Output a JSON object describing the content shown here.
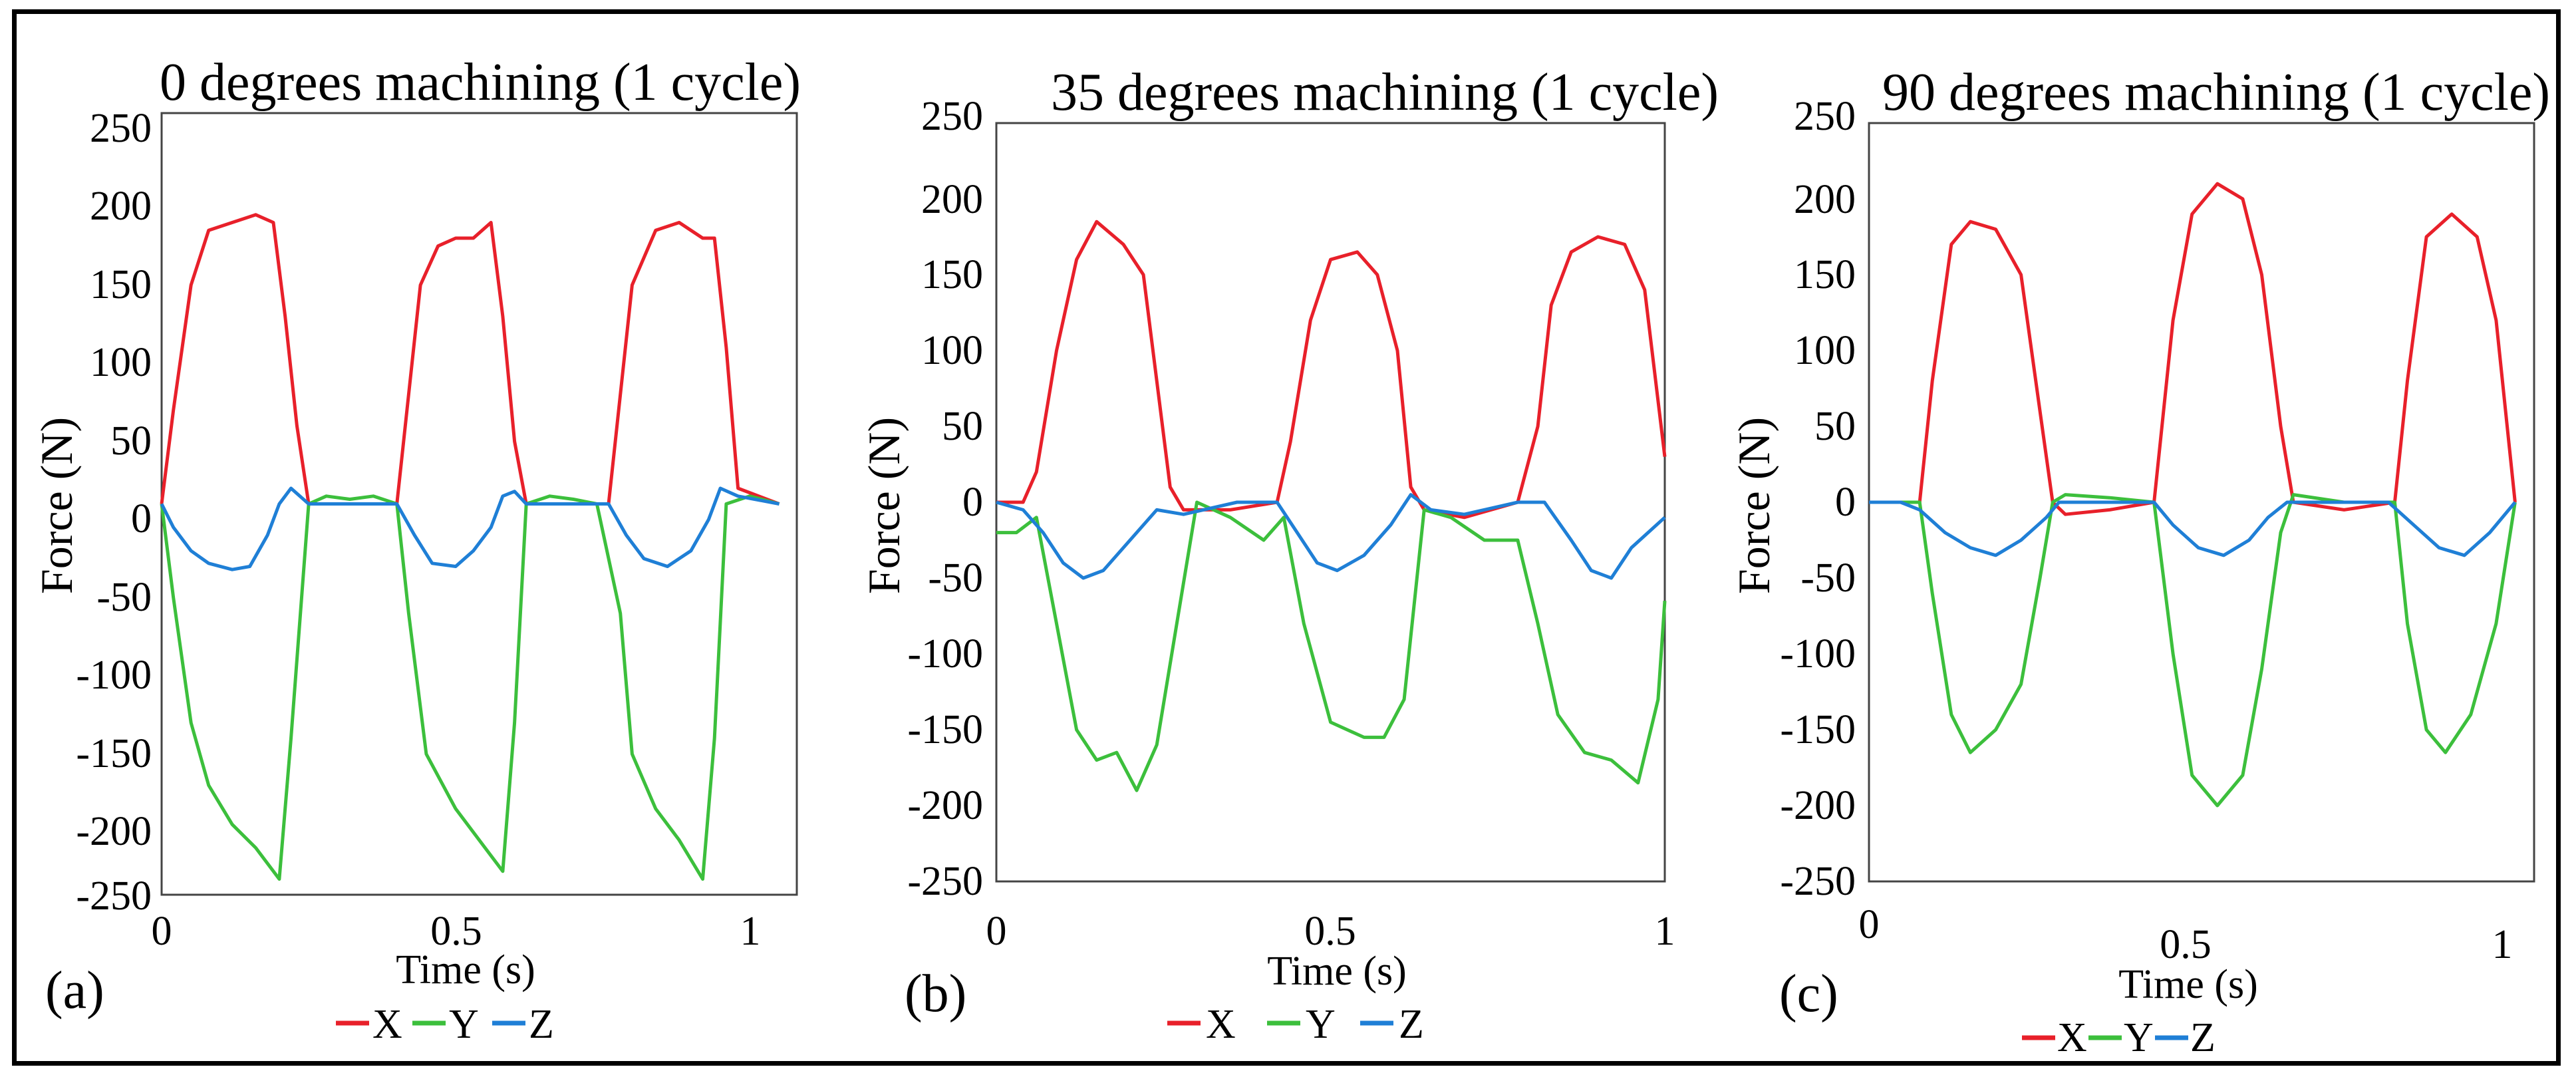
{
  "figure": {
    "frame_color": "#000000",
    "background": "#ffffff"
  },
  "chart_data": [
    {
      "type": "line",
      "panel_label": "(a)",
      "title": "0 degrees machining (1 cycle)",
      "xlabel": "Time (s)",
      "ylabel": "Force (N)",
      "xlim": [
        0,
        1.08
      ],
      "ylim": [
        -250,
        250
      ],
      "xticks": [
        0,
        0.5,
        1
      ],
      "xtick_labels": [
        "0",
        "0.5",
        "1"
      ],
      "yticks": [
        250,
        200,
        150,
        100,
        50,
        0,
        -50,
        -100,
        -150,
        -200,
        -250
      ],
      "ytick_labels": [
        "250",
        "200",
        "150",
        "100",
        "50",
        "0",
        "-50",
        "-100",
        "-150",
        "-200",
        "-250"
      ],
      "legend": [
        "X",
        "Y",
        "Z"
      ],
      "series": [
        {
          "name": "X",
          "color": "#e8202a",
          "x": [
            0,
            0.02,
            0.05,
            0.08,
            0.12,
            0.16,
            0.19,
            0.21,
            0.23,
            0.25,
            0.3,
            0.35,
            0.4,
            0.42,
            0.44,
            0.47,
            0.5,
            0.53,
            0.56,
            0.58,
            0.6,
            0.62,
            0.7,
            0.76,
            0.78,
            0.8,
            0.84,
            0.88,
            0.92,
            0.94,
            0.96,
            0.98,
            1.05
          ],
          "values": [
            0,
            60,
            140,
            175,
            180,
            185,
            180,
            120,
            50,
            0,
            0,
            0,
            0,
            70,
            140,
            165,
            170,
            170,
            180,
            120,
            40,
            0,
            0,
            0,
            70,
            140,
            175,
            180,
            170,
            170,
            100,
            10,
            0
          ]
        },
        {
          "name": "Y",
          "color": "#3cbf3c",
          "x": [
            0,
            0.02,
            0.05,
            0.08,
            0.12,
            0.16,
            0.2,
            0.22,
            0.25,
            0.28,
            0.32,
            0.36,
            0.4,
            0.42,
            0.45,
            0.5,
            0.55,
            0.58,
            0.6,
            0.62,
            0.66,
            0.7,
            0.74,
            0.78,
            0.8,
            0.84,
            0.88,
            0.92,
            0.94,
            0.96,
            1.0,
            1.05
          ],
          "values": [
            0,
            -60,
            -140,
            -180,
            -205,
            -220,
            -240,
            -150,
            0,
            5,
            3,
            5,
            0,
            -70,
            -160,
            -195,
            -220,
            -235,
            -140,
            0,
            5,
            3,
            0,
            -70,
            -160,
            -195,
            -215,
            -240,
            -150,
            0,
            5,
            0
          ]
        },
        {
          "name": "Z",
          "color": "#1f7fd6",
          "x": [
            0,
            0.02,
            0.05,
            0.08,
            0.12,
            0.15,
            0.18,
            0.2,
            0.22,
            0.25,
            0.3,
            0.35,
            0.4,
            0.43,
            0.46,
            0.5,
            0.53,
            0.56,
            0.58,
            0.6,
            0.62,
            0.7,
            0.76,
            0.79,
            0.82,
            0.86,
            0.9,
            0.93,
            0.95,
            0.98,
            1.05
          ],
          "values": [
            0,
            -15,
            -30,
            -38,
            -42,
            -40,
            -20,
            0,
            10,
            0,
            0,
            0,
            0,
            -20,
            -38,
            -40,
            -30,
            -15,
            5,
            8,
            0,
            0,
            0,
            -20,
            -35,
            -40,
            -30,
            -10,
            10,
            5,
            0
          ]
        }
      ]
    },
    {
      "type": "line",
      "panel_label": "(b)",
      "title": "35 degrees machining (1 cycle)",
      "xlabel": "Time (s)",
      "ylabel": "Force (N)",
      "xlim": [
        0,
        1.0
      ],
      "ylim": [
        -250,
        250
      ],
      "xticks": [
        0,
        0.5,
        1
      ],
      "xtick_labels": [
        "0",
        "0.5",
        "1"
      ],
      "yticks": [
        250,
        200,
        150,
        100,
        50,
        0,
        -50,
        -100,
        -150,
        -200,
        -250
      ],
      "ytick_labels": [
        "250",
        "200",
        "150",
        "100",
        "50",
        "0",
        "-50",
        "-100",
        "-150",
        "-200",
        "-250"
      ],
      "legend": [
        "X",
        "Y",
        "Z"
      ],
      "series": [
        {
          "name": "X",
          "color": "#e8202a",
          "x": [
            0,
            0.04,
            0.06,
            0.09,
            0.12,
            0.15,
            0.19,
            0.22,
            0.24,
            0.26,
            0.28,
            0.35,
            0.42,
            0.44,
            0.47,
            0.5,
            0.54,
            0.57,
            0.6,
            0.62,
            0.64,
            0.7,
            0.78,
            0.81,
            0.83,
            0.86,
            0.9,
            0.94,
            0.97,
            1.0
          ],
          "values": [
            0,
            0,
            20,
            100,
            160,
            185,
            170,
            150,
            80,
            10,
            -5,
            -5,
            0,
            40,
            120,
            160,
            165,
            150,
            100,
            10,
            -5,
            -10,
            0,
            50,
            130,
            165,
            175,
            170,
            140,
            30
          ]
        },
        {
          "name": "Y",
          "color": "#3cbf3c",
          "x": [
            0,
            0.03,
            0.06,
            0.09,
            0.12,
            0.15,
            0.18,
            0.21,
            0.24,
            0.27,
            0.3,
            0.35,
            0.4,
            0.43,
            0.46,
            0.5,
            0.55,
            0.58,
            0.61,
            0.64,
            0.68,
            0.73,
            0.78,
            0.81,
            0.84,
            0.88,
            0.92,
            0.96,
            0.99,
            1.0
          ],
          "values": [
            -20,
            -20,
            -10,
            -80,
            -150,
            -170,
            -165,
            -190,
            -160,
            -80,
            0,
            -10,
            -25,
            -10,
            -80,
            -145,
            -155,
            -155,
            -130,
            -5,
            -10,
            -25,
            -25,
            -80,
            -140,
            -165,
            -170,
            -185,
            -130,
            -65
          ]
        },
        {
          "name": "Z",
          "color": "#1f7fd6",
          "x": [
            0,
            0.04,
            0.07,
            0.1,
            0.13,
            0.16,
            0.2,
            0.24,
            0.28,
            0.31,
            0.36,
            0.42,
            0.45,
            0.48,
            0.51,
            0.55,
            0.59,
            0.62,
            0.65,
            0.7,
            0.78,
            0.82,
            0.86,
            0.89,
            0.92,
            0.95,
            1.0
          ],
          "values": [
            0,
            -5,
            -20,
            -40,
            -50,
            -45,
            -25,
            -5,
            -8,
            -5,
            0,
            0,
            -20,
            -40,
            -45,
            -35,
            -15,
            5,
            -5,
            -8,
            0,
            0,
            -25,
            -45,
            -50,
            -30,
            -10
          ]
        }
      ]
    },
    {
      "type": "line",
      "panel_label": "(c)",
      "title": "90 degrees machining (1 cycle)",
      "xlabel": "Time (s)",
      "ylabel": "Force (N)",
      "xlim": [
        0,
        1.05
      ],
      "ylim": [
        -250,
        250
      ],
      "xticks": [
        0,
        0.5,
        1
      ],
      "xtick_labels": [
        "0",
        "0.5",
        "1"
      ],
      "yticks": [
        250,
        200,
        150,
        100,
        50,
        0,
        -50,
        -100,
        -150,
        -200,
        -250
      ],
      "ytick_labels": [
        "250",
        "200",
        "150",
        "100",
        "50",
        "0",
        "-50",
        "-100",
        "-150",
        "-200",
        "-250"
      ],
      "legend": [
        "X",
        "Y",
        "Z"
      ],
      "series": [
        {
          "name": "X",
          "color": "#e8202a",
          "x": [
            0,
            0.08,
            0.1,
            0.13,
            0.16,
            0.2,
            0.24,
            0.27,
            0.29,
            0.31,
            0.38,
            0.45,
            0.48,
            0.51,
            0.55,
            0.59,
            0.62,
            0.65,
            0.67,
            0.75,
            0.83,
            0.85,
            0.88,
            0.92,
            0.96,
            0.99,
            1.02
          ],
          "values": [
            0,
            0,
            80,
            170,
            185,
            180,
            150,
            60,
            0,
            -8,
            -5,
            0,
            120,
            190,
            210,
            200,
            150,
            50,
            0,
            -5,
            0,
            80,
            175,
            190,
            175,
            120,
            0
          ]
        },
        {
          "name": "Y",
          "color": "#3cbf3c",
          "x": [
            0,
            0.08,
            0.1,
            0.13,
            0.16,
            0.2,
            0.24,
            0.27,
            0.29,
            0.31,
            0.38,
            0.45,
            0.48,
            0.51,
            0.55,
            0.59,
            0.62,
            0.65,
            0.67,
            0.75,
            0.83,
            0.85,
            0.88,
            0.91,
            0.95,
            0.99,
            1.02
          ],
          "values": [
            0,
            0,
            -60,
            -140,
            -165,
            -150,
            -120,
            -50,
            0,
            5,
            3,
            0,
            -100,
            -180,
            -200,
            -180,
            -110,
            -20,
            5,
            0,
            0,
            -80,
            -150,
            -165,
            -140,
            -80,
            0
          ]
        },
        {
          "name": "Z",
          "color": "#1f7fd6",
          "x": [
            0,
            0.05,
            0.08,
            0.12,
            0.16,
            0.2,
            0.24,
            0.28,
            0.3,
            0.38,
            0.45,
            0.48,
            0.52,
            0.56,
            0.6,
            0.63,
            0.66,
            0.74,
            0.82,
            0.86,
            0.9,
            0.94,
            0.98,
            1.02
          ],
          "values": [
            0,
            0,
            -5,
            -20,
            -30,
            -35,
            -25,
            -10,
            0,
            0,
            0,
            -15,
            -30,
            -35,
            -25,
            -10,
            0,
            0,
            0,
            -15,
            -30,
            -35,
            -20,
            0
          ]
        }
      ]
    }
  ]
}
